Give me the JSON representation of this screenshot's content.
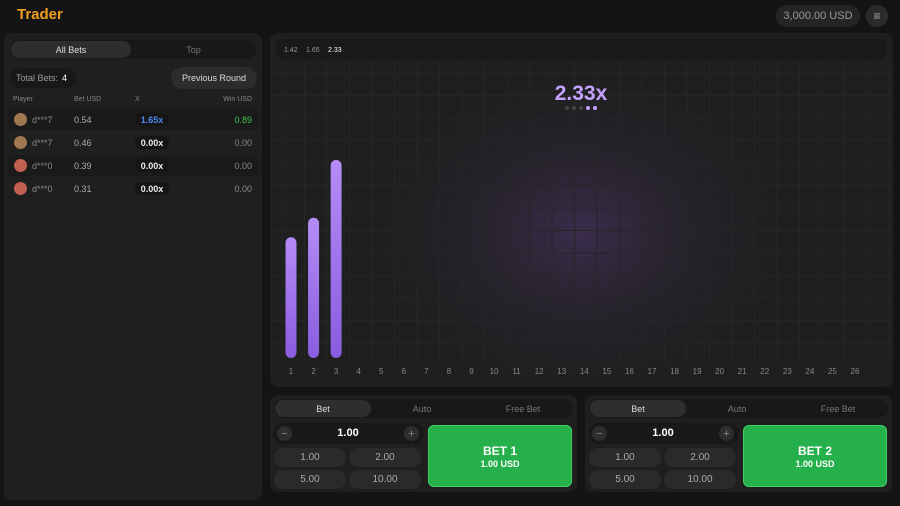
{
  "header": {
    "logo": "Trader",
    "balance": "3,000.00 USD"
  },
  "bets_panel": {
    "tabs": [
      "All Bets",
      "Top"
    ],
    "total_label": "Total Bets:",
    "total": "4",
    "previous_round": "Previous Round",
    "columns": [
      "Player",
      "Bet USD",
      "X",
      "Win USD"
    ],
    "rows": [
      [
        "d***7",
        "0.54",
        "1.65x",
        "0.89"
      ],
      [
        "d***7",
        "0.46",
        "0.00x",
        "0.00"
      ],
      [
        "d***0",
        "0.39",
        "0.00x",
        "0.00"
      ],
      [
        "d***0",
        "0.31",
        "0.00x",
        "0.00"
      ]
    ]
  },
  "game": {
    "history": [
      1.42,
      1.65,
      2.33
    ],
    "multiplier_label": "2.33x",
    "x_labels": [
      1,
      2,
      3,
      4,
      5,
      6,
      7,
      8,
      9,
      10,
      11,
      12,
      13,
      14,
      15,
      16,
      17,
      18,
      19,
      20,
      21,
      22,
      23,
      24,
      25,
      26
    ]
  },
  "bet_panels": [
    {
      "tabs": [
        "Bet",
        "Auto",
        "Free Bet"
      ],
      "amount": "1.00",
      "quick": [
        "1.00",
        "2.00",
        "5.00",
        "10.00"
      ],
      "button": "BET 1",
      "button_amount": "1.00 USD"
    },
    {
      "tabs": [
        "Bet",
        "Auto",
        "Free Bet"
      ],
      "amount": "1.00",
      "quick": [
        "1.00",
        "2.00",
        "5.00",
        "10.00"
      ],
      "button": "BET 2",
      "button_amount": "1.00 USD"
    }
  ]
}
